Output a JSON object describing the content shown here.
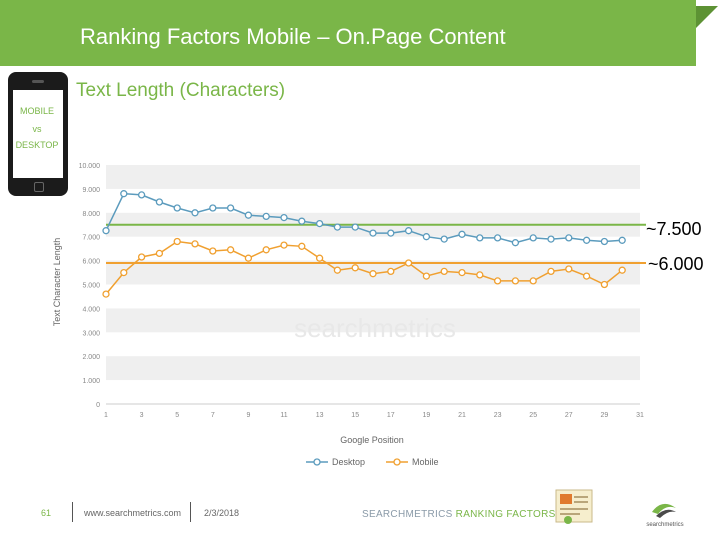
{
  "header": {
    "title": "Ranking Factors Mobile – On.Page Content"
  },
  "phone": {
    "line1": "MOBILE",
    "line2": "vs",
    "line3": "DESKTOP"
  },
  "subtitle": "Text Length (Characters)",
  "annotations": {
    "desktop_level": "~7.500",
    "mobile_level": "~6.000"
  },
  "colors": {
    "green": "#7ab648",
    "orange": "#f0a030",
    "desktop_line": "#5b9bbd",
    "mobile_line": "#f0a030"
  },
  "chart_data": {
    "type": "line",
    "title": "",
    "xlabel": "Google Position",
    "ylabel": "Text Character Length",
    "x": [
      1,
      2,
      3,
      4,
      5,
      6,
      7,
      8,
      9,
      10,
      11,
      12,
      13,
      14,
      15,
      16,
      17,
      18,
      19,
      20,
      21,
      22,
      23,
      24,
      25,
      26,
      27,
      28,
      29,
      30
    ],
    "xticks": [
      "1",
      "3",
      "5",
      "7",
      "9",
      "11",
      "13",
      "15",
      "17",
      "19",
      "21",
      "23",
      "25",
      "27",
      "29",
      "31"
    ],
    "yticks": [
      "0",
      "1.000",
      "2.000",
      "3.000",
      "4.000",
      "5.000",
      "6.000",
      "7.000",
      "8.000",
      "9.000",
      "10.000"
    ],
    "ylim": [
      0,
      10000
    ],
    "xlim": [
      1,
      31
    ],
    "series": [
      {
        "name": "Desktop",
        "values": [
          7250,
          8800,
          8750,
          8450,
          8200,
          8000,
          8200,
          8200,
          7900,
          7850,
          7800,
          7650,
          7550,
          7400,
          7400,
          7150,
          7150,
          7250,
          7000,
          6900,
          7100,
          6950,
          6950,
          6750,
          6950,
          6900,
          6950,
          6850,
          6800,
          6850
        ]
      },
      {
        "name": "Mobile",
        "values": [
          4600,
          5500,
          6150,
          6300,
          6800,
          6700,
          6400,
          6450,
          6100,
          6450,
          6650,
          6600,
          6100,
          5600,
          5700,
          5450,
          5550,
          5900,
          5350,
          5550,
          5500,
          5400,
          5150,
          5150,
          5150,
          5550,
          5650,
          5350,
          5000,
          5600
        ]
      }
    ],
    "reference_lines": [
      {
        "value": 7500,
        "label": "~7.500"
      },
      {
        "value": 5900,
        "label": "~6.000"
      }
    ],
    "legend_position": "bottom",
    "watermark": "searchmetrics"
  },
  "footer": {
    "page": "61",
    "url": "www.searchmetrics.com",
    "date": "2/3/2018",
    "brand_part1": "SEARCHMETRICS",
    "brand_part2": "RANKING FACTORS 2014",
    "logo_text": "searchmetrics"
  }
}
